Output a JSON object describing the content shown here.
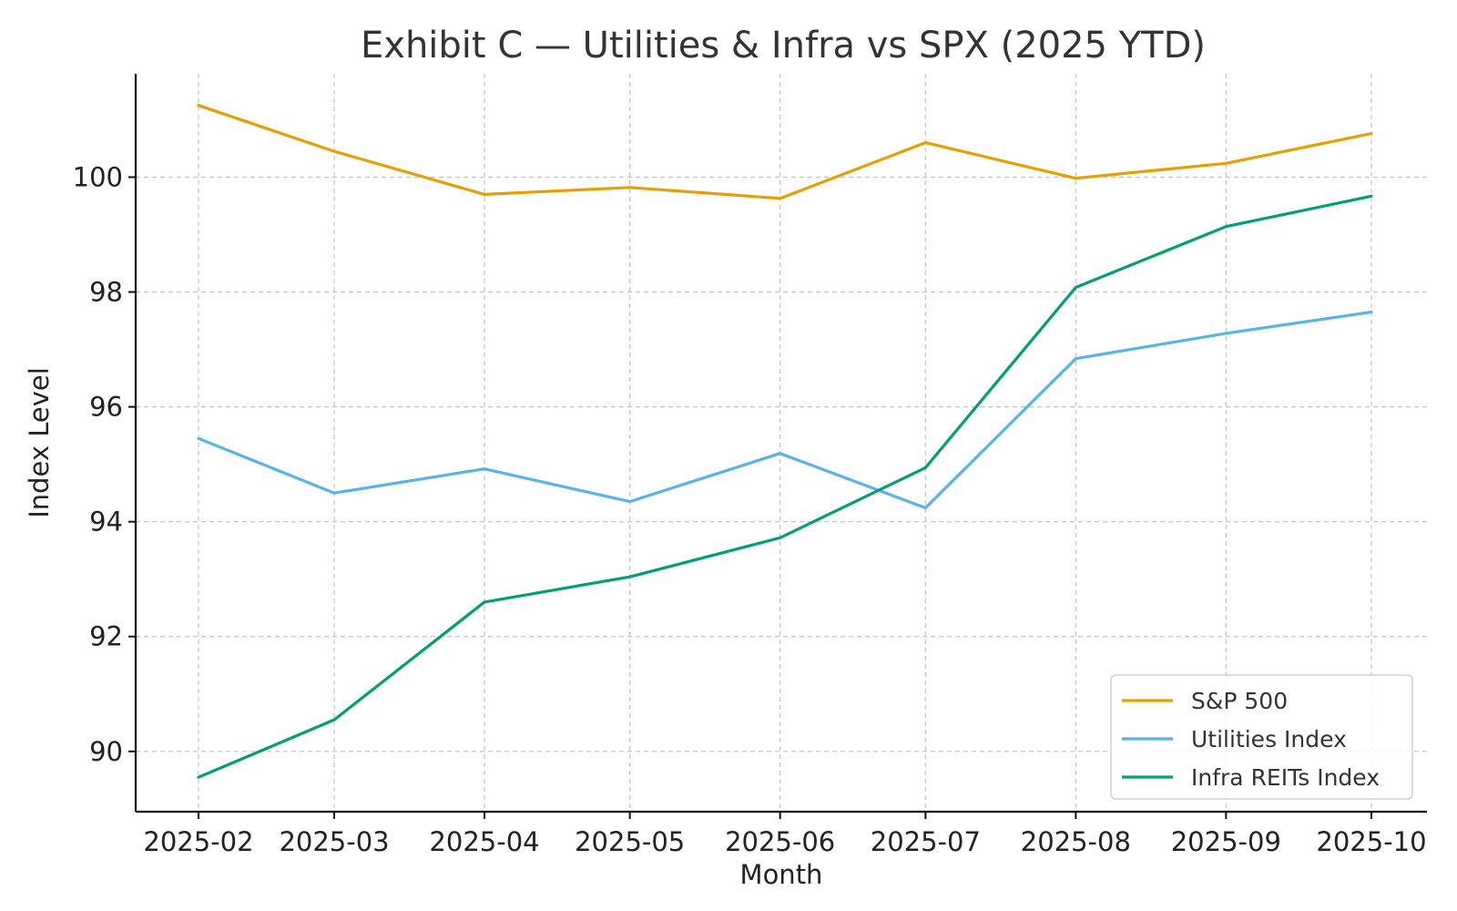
{
  "chart_data": {
    "type": "line",
    "title": "Exhibit C — Utilities & Infra vs SPX (2025 YTD)",
    "xlabel": "Month",
    "ylabel": "Index Level",
    "categories": [
      "2025-02",
      "2025-03",
      "2025-04",
      "2025-05",
      "2025-06",
      "2025-07",
      "2025-08",
      "2025-09",
      "2025-10"
    ],
    "x_days": [
      0,
      28,
      59,
      89,
      120,
      150,
      181,
      212,
      242
    ],
    "ylim": [
      88.95,
      101.8
    ],
    "yticks": [
      90,
      92,
      94,
      96,
      98,
      100
    ],
    "grid": true,
    "legend_position": "lower-right",
    "series": [
      {
        "name": "S&P 500",
        "color": "#E69F00",
        "values": [
          101.25,
          100.45,
          99.7,
          99.82,
          99.63,
          100.6,
          99.98,
          100.24,
          100.76
        ]
      },
      {
        "name": "Utilities Index",
        "color": "#56B4E9",
        "values": [
          95.45,
          94.5,
          94.92,
          94.35,
          95.19,
          94.24,
          96.84,
          97.28,
          97.65
        ]
      },
      {
        "name": "Infra REITs Index",
        "color": "#009E73",
        "values": [
          89.55,
          90.55,
          92.6,
          93.04,
          93.72,
          94.94,
          98.08,
          99.14,
          99.67
        ]
      }
    ]
  }
}
